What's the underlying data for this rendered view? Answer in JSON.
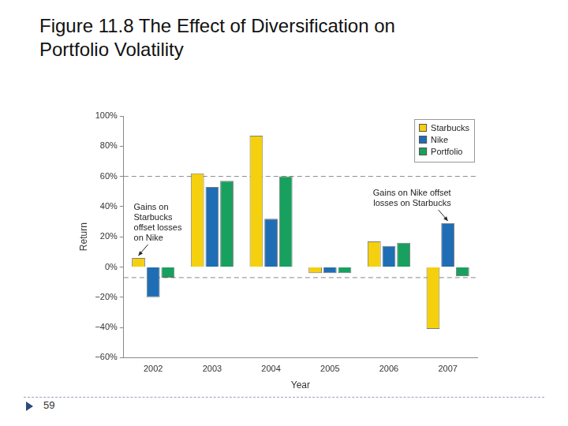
{
  "slide": {
    "page_number": "59"
  },
  "chart_data": {
    "type": "bar",
    "title": "Figure 11.8 The Effect of Diversification on Portfolio Volatility",
    "x_label": "Year",
    "y_label": "Return",
    "categories": [
      "2002",
      "2003",
      "2004",
      "2005",
      "2006",
      "2007"
    ],
    "series": [
      {
        "name": "Starbucks",
        "color": "#f5d00f",
        "values": [
          6,
          62,
          87,
          -4,
          17,
          -41
        ]
      },
      {
        "name": "Nike",
        "color": "#1f6db5",
        "values": [
          -20,
          53,
          32,
          -4,
          14,
          29
        ]
      },
      {
        "name": "Portfolio",
        "color": "#17a05e",
        "values": [
          -7,
          57,
          60,
          -4,
          16,
          -6
        ]
      }
    ],
    "ylim": [
      -60,
      100
    ],
    "yticks": [
      {
        "value": -60,
        "label": "−60%"
      },
      {
        "value": -40,
        "label": "−40%"
      },
      {
        "value": -20,
        "label": "−20%"
      },
      {
        "value": 0,
        "label": "0%"
      },
      {
        "value": 20,
        "label": "20%"
      },
      {
        "value": 40,
        "label": "40%"
      },
      {
        "value": 60,
        "label": "60%"
      },
      {
        "value": 80,
        "label": "80%"
      },
      {
        "value": 100,
        "label": "100%"
      }
    ],
    "grid": false,
    "legend": "top-right",
    "reference_lines": [
      60,
      -7
    ],
    "annotations": [
      {
        "lines": [
          "Gains on",
          "Starbucks",
          "offset losses",
          "on Nike"
        ],
        "category": "2002",
        "series": "Starbucks"
      },
      {
        "lines": [
          "Gains on Nike offset",
          "losses on Starbucks"
        ],
        "category": "2007",
        "series": "Nike"
      }
    ]
  }
}
